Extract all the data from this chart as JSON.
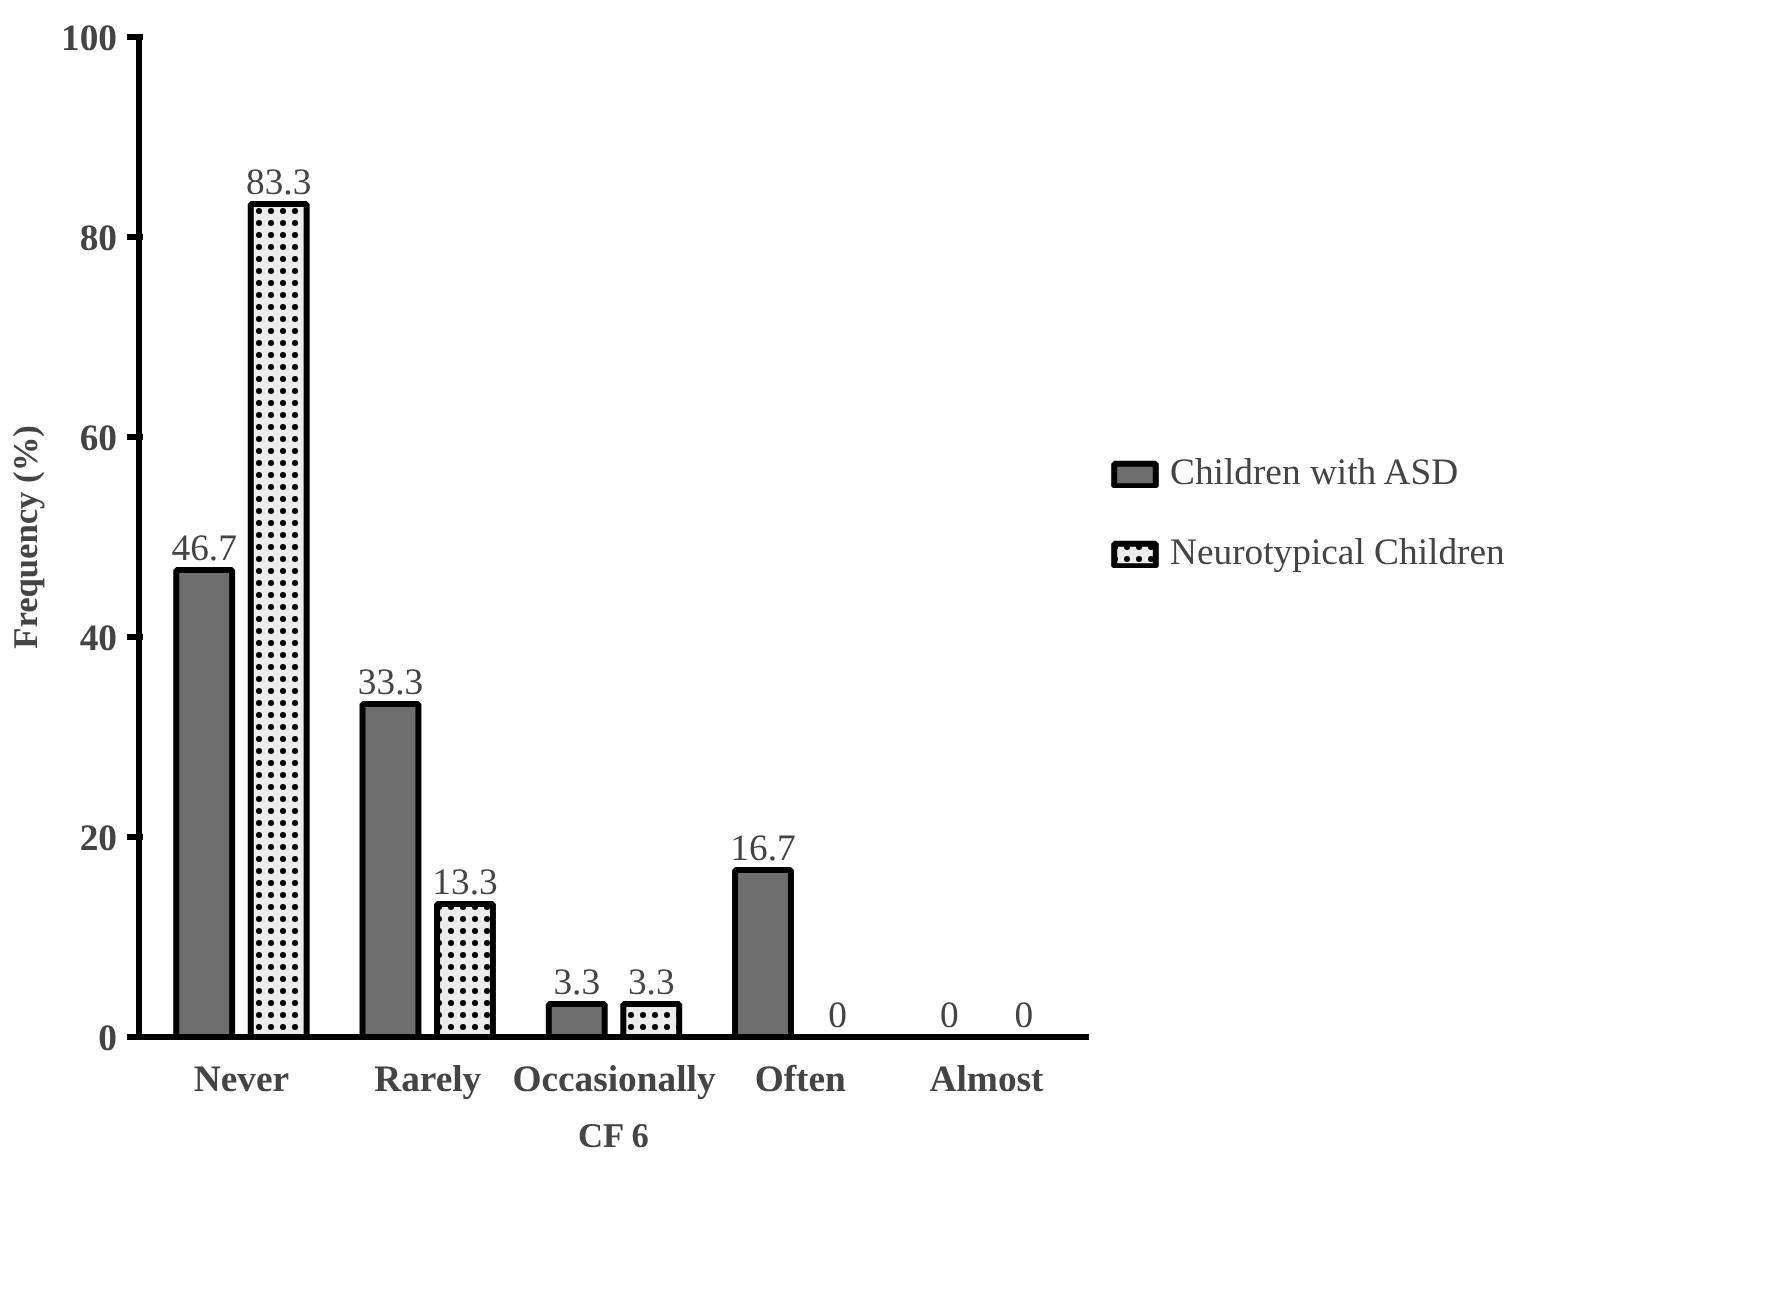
{
  "chart_data": {
    "type": "bar",
    "xlabel": "CF 6",
    "ylabel": "Frequency (%)",
    "categories": [
      "Never",
      "Rarely",
      "Occasionally",
      "Often",
      "Almost"
    ],
    "series": [
      {
        "name": "Children with ASD",
        "color": "#6e6e6e",
        "values": [
          46.7,
          33.3,
          3.3,
          16.7,
          0
        ]
      },
      {
        "name": "Neurotypical Children",
        "color": "#ececec",
        "values": [
          83.3,
          13.3,
          3.3,
          0,
          0
        ]
      }
    ],
    "ylim": [
      0,
      100
    ],
    "yticks": [
      0,
      20,
      40,
      60,
      80,
      100
    ],
    "data_labels": true,
    "legend": "right",
    "grid": false
  }
}
